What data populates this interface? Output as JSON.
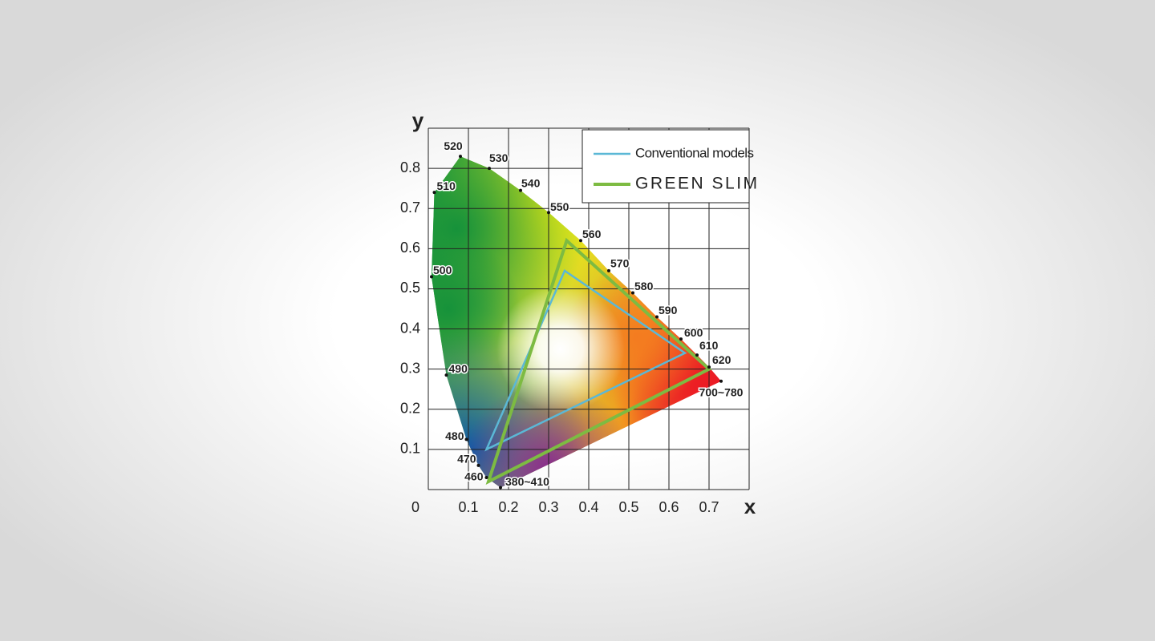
{
  "chart_data": {
    "type": "chromaticity",
    "x_label": "x",
    "y_label": "y",
    "xlim": [
      0,
      0.8
    ],
    "ylim": [
      0,
      0.9
    ],
    "xticks": [
      0,
      0.1,
      0.2,
      0.3,
      0.4,
      0.5,
      0.6,
      0.7
    ],
    "yticks": [
      0.1,
      0.2,
      0.3,
      0.4,
      0.5,
      0.6,
      0.7,
      0.8
    ],
    "grid": true,
    "locus": {
      "labels": [
        "380~410",
        "460",
        "470",
        "480",
        "490",
        "500",
        "510",
        "520",
        "530",
        "540",
        "550",
        "560",
        "570",
        "580",
        "590",
        "600",
        "610",
        "620",
        "700~780"
      ],
      "x": [
        0.18,
        0.145,
        0.125,
        0.095,
        0.045,
        0.008,
        0.015,
        0.08,
        0.152,
        0.23,
        0.3,
        0.38,
        0.45,
        0.51,
        0.57,
        0.63,
        0.67,
        0.7,
        0.73
      ],
      "y": [
        0.005,
        0.03,
        0.06,
        0.125,
        0.285,
        0.53,
        0.74,
        0.83,
        0.8,
        0.745,
        0.69,
        0.62,
        0.545,
        0.49,
        0.43,
        0.375,
        0.335,
        0.305,
        0.27
      ]
    },
    "legend": "upper right",
    "series": [
      {
        "name": "Conventional models",
        "color": "#5bb8d6",
        "x": [
          0.64,
          0.34,
          0.145
        ],
        "y": [
          0.34,
          0.545,
          0.1
        ]
      },
      {
        "name": "GREEN SLIM",
        "color": "#7dbb42",
        "x": [
          0.7,
          0.345,
          0.15
        ],
        "y": [
          0.3,
          0.62,
          0.02
        ]
      }
    ]
  }
}
